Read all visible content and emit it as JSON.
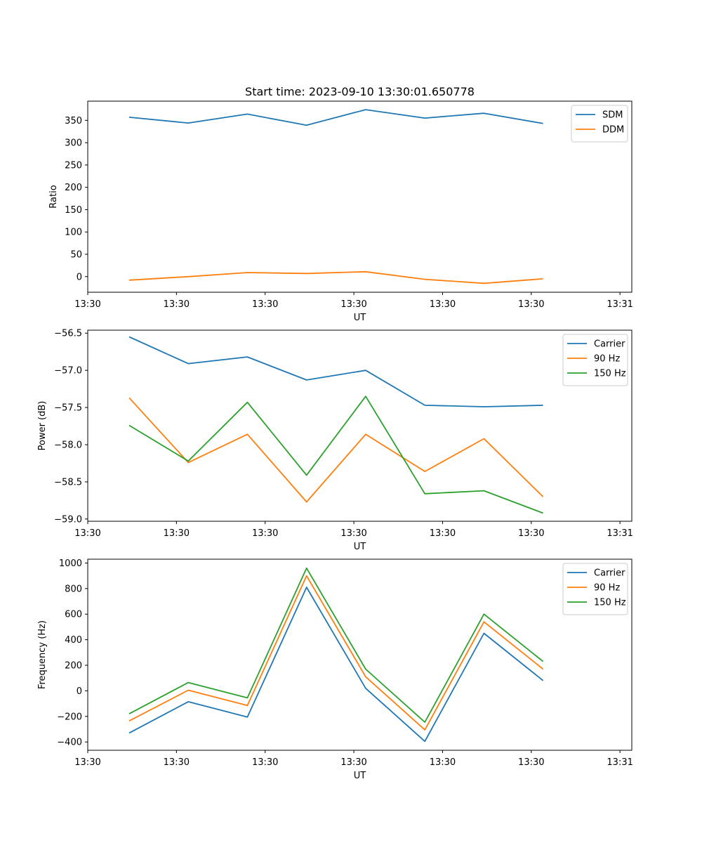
{
  "chart_data": [
    {
      "type": "line",
      "title": "Start time: 2023-09-10 13:30:01.650778",
      "xlabel": "UT",
      "ylabel": "Ratio",
      "x": [
        1,
        2,
        3,
        4,
        5,
        6,
        7,
        8
      ],
      "xlim": [
        0.3,
        9.5
      ],
      "xticks": [
        0.3,
        1.8,
        3.3,
        4.8,
        6.3,
        7.8,
        9.3
      ],
      "xtick_labels": [
        "13:30",
        "13:30",
        "13:30",
        "13:30",
        "13:30",
        "13:30",
        "13:31"
      ],
      "ylim": [
        -35,
        393
      ],
      "yticks": [
        0,
        50,
        100,
        150,
        200,
        250,
        300,
        350
      ],
      "legend": "top-right",
      "series": [
        {
          "name": "SDM",
          "color": "#1f77b4",
          "values": [
            357,
            344,
            364,
            339,
            374,
            355,
            366,
            343
          ]
        },
        {
          "name": "DDM",
          "color": "#ff7f0e",
          "values": [
            -8,
            0,
            9,
            7,
            11,
            -6,
            -15,
            -5
          ]
        }
      ]
    },
    {
      "type": "line",
      "title": "",
      "xlabel": "UT",
      "ylabel": "Power (dB)",
      "x": [
        1,
        2,
        3,
        4,
        5,
        6,
        7,
        8
      ],
      "xlim": [
        0.3,
        9.5
      ],
      "xticks": [
        0.3,
        1.8,
        3.3,
        4.8,
        6.3,
        7.8,
        9.3
      ],
      "xtick_labels": [
        "13:30",
        "13:30",
        "13:30",
        "13:30",
        "13:30",
        "13:30",
        "13:31"
      ],
      "ylim": [
        -59.03,
        -56.46
      ],
      "yticks": [
        -59.0,
        -58.5,
        -58.0,
        -57.5,
        -57.0,
        -56.5
      ],
      "ytick_labels": [
        "−59.0",
        "−58.5",
        "−58.0",
        "−57.5",
        "−57.0",
        "−56.5"
      ],
      "legend": "top-right",
      "series": [
        {
          "name": "Carrier",
          "color": "#1f77b4",
          "values": [
            -56.55,
            -56.91,
            -56.82,
            -57.13,
            -57.0,
            -57.47,
            -57.49,
            -57.47
          ]
        },
        {
          "name": "90 Hz",
          "color": "#ff7f0e",
          "values": [
            -57.37,
            -58.24,
            -57.86,
            -58.77,
            -57.86,
            -58.36,
            -57.92,
            -58.7
          ]
        },
        {
          "name": "150 Hz",
          "color": "#2ca02c",
          "values": [
            -57.74,
            -58.22,
            -57.43,
            -58.41,
            -57.35,
            -58.66,
            -58.62,
            -58.92
          ]
        }
      ]
    },
    {
      "type": "line",
      "title": "",
      "xlabel": "UT",
      "ylabel": "Frequency (Hz)",
      "x": [
        1,
        2,
        3,
        4,
        5,
        6,
        7,
        8
      ],
      "xlim": [
        0.3,
        9.5
      ],
      "xticks": [
        0.3,
        1.8,
        3.3,
        4.8,
        6.3,
        7.8,
        9.3
      ],
      "xtick_labels": [
        "13:30",
        "13:30",
        "13:30",
        "13:30",
        "13:30",
        "13:30",
        "13:31"
      ],
      "ylim": [
        -465,
        1030
      ],
      "yticks": [
        -400,
        -200,
        0,
        200,
        400,
        600,
        800,
        1000
      ],
      "ytick_labels": [
        "−400",
        "−200",
        "0",
        "200",
        "400",
        "600",
        "800",
        "1000"
      ],
      "legend": "top-right",
      "series": [
        {
          "name": "Carrier",
          "color": "#1f77b4",
          "values": [
            -330,
            -85,
            -205,
            810,
            20,
            -395,
            450,
            80
          ]
        },
        {
          "name": "90 Hz",
          "color": "#ff7f0e",
          "values": [
            -235,
            5,
            -115,
            900,
            110,
            -305,
            540,
            170
          ]
        },
        {
          "name": "150 Hz",
          "color": "#2ca02c",
          "values": [
            -180,
            65,
            -55,
            960,
            170,
            -245,
            600,
            230
          ]
        }
      ]
    }
  ]
}
